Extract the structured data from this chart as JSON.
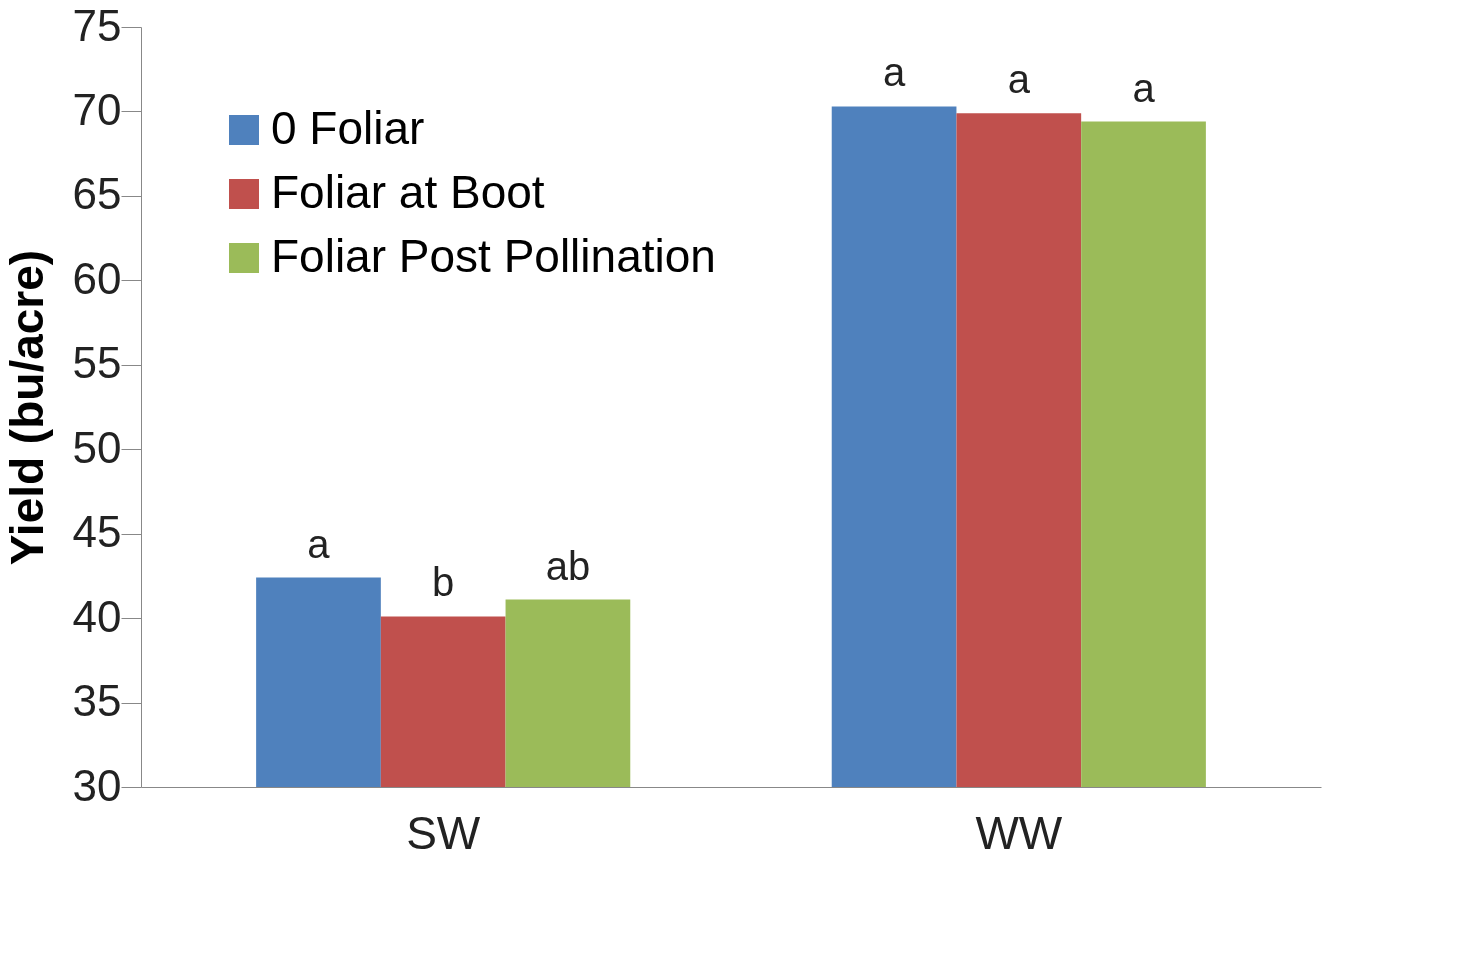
{
  "chart_data": {
    "type": "bar",
    "ylabel": "Yield (bu/acre)",
    "categories": [
      "SW",
      "WW"
    ],
    "series": [
      {
        "name": "0 Foliar",
        "color": "#4f81bd",
        "values": [
          42.4,
          70.3
        ],
        "value_labels": [
          "a",
          "a"
        ]
      },
      {
        "name": "Foliar at Boot",
        "color": "#c0504d",
        "values": [
          40.1,
          69.9
        ],
        "value_labels": [
          "b",
          "a"
        ]
      },
      {
        "name": "Foliar Post Pollination",
        "color": "#9bbb59",
        "values": [
          41.1,
          69.4
        ],
        "value_labels": [
          "ab",
          "a"
        ]
      }
    ],
    "ylim": [
      30,
      75
    ],
    "yticks": [
      30,
      35,
      40,
      45,
      50,
      55,
      60,
      65,
      70,
      75
    ],
    "grid": false,
    "legend": "top left"
  }
}
